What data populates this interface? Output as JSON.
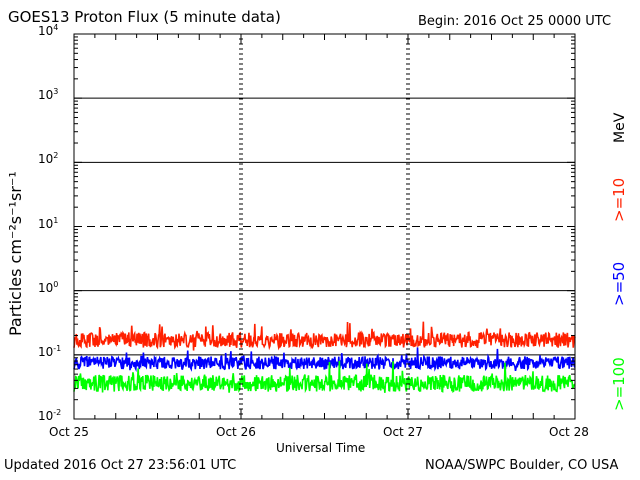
{
  "header": {
    "title": "GOES13 Proton Flux (5 minute data)",
    "begin": "Begin: 2016 Oct 25 0000 UTC"
  },
  "footer": {
    "updated": "Updated 2016 Oct 27 23:56:01 UTC",
    "source": "NOAA/SWPC Boulder, CO USA"
  },
  "chart_data": {
    "type": "line",
    "title": "GOES13 Proton Flux (5 minute data)",
    "xlabel": "Universal Time",
    "ylabel": "Particles cm⁻²s⁻¹sr⁻¹",
    "yscale": "log",
    "ylim": [
      0.01,
      10000
    ],
    "xlim_days": [
      0,
      3
    ],
    "xticks": [
      "Oct 25",
      "Oct 26",
      "Oct 27",
      "Oct 28"
    ],
    "yticks": [
      {
        "value": 0.01,
        "base": "10",
        "exp": "-2"
      },
      {
        "value": 0.1,
        "base": "10",
        "exp": "-1"
      },
      {
        "value": 1,
        "base": "10",
        "exp": "0"
      },
      {
        "value": 10,
        "base": "10",
        "exp": "1"
      },
      {
        "value": 100,
        "base": "10",
        "exp": "2"
      },
      {
        "value": 1000,
        "base": "10",
        "exp": "3"
      },
      {
        "value": 10000,
        "base": "10",
        "exp": "4"
      }
    ],
    "threshold_lines": [
      {
        "value": 10,
        "style": "dashed"
      },
      {
        "value": 1,
        "style": "solid"
      },
      {
        "value": 100,
        "style": "solid"
      },
      {
        "value": 1000,
        "style": "solid"
      },
      {
        "value": 0.1,
        "style": "solid"
      }
    ],
    "energy_unit": "MeV",
    "series": [
      {
        "name": ">=10",
        "color": "#ff2000",
        "base": 0.17,
        "spread": 0.12,
        "amp": 1.6
      },
      {
        "name": ">=50",
        "color": "#0000ff",
        "base": 0.075,
        "spread": 0.1,
        "amp": 1.4
      },
      {
        "name": ">=100",
        "color": "#00ff00",
        "base": 0.036,
        "spread": 0.13,
        "amp": 1.7
      }
    ]
  }
}
